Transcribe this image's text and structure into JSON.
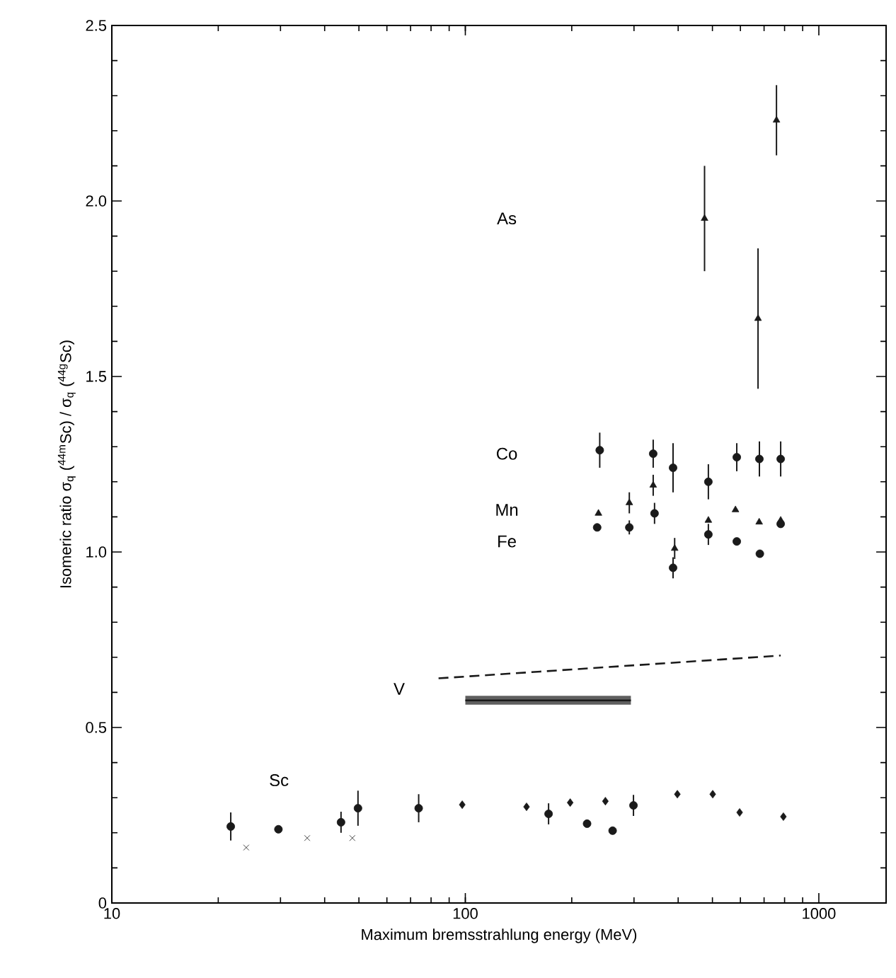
{
  "chart_data": {
    "type": "scatter",
    "xlabel": "Maximum bremsstrahlung energy (MeV)",
    "ylabel": "Isomeric ratio σ$_{q}$ ($^{44m}$Sc) / σ$_{q}$ ($^{44g}$Sc)",
    "log": "x",
    "xlim": [
      10,
      1550
    ],
    "ylim": [
      0,
      2.5
    ],
    "xticks": [
      10,
      100,
      1000
    ],
    "yticks": [
      0,
      0.5,
      {
        "value": 1,
        "label": "1.0"
      },
      1.5,
      {
        "value": 2,
        "label": "2.0"
      },
      2.5
    ],
    "series": [
      {
        "marker": "triangle",
        "color": "#1a1a1a",
        "x": [
          475,
          673,
          759
        ],
        "values": [
          1.95,
          1.665,
          2.23
        ],
        "errors": [
          0.15,
          0.2,
          0.1
        ]
      },
      {
        "marker": "circle",
        "color": "#1a1a1a",
        "x": [
          240,
          340,
          387,
          487,
          586,
          679,
          780
        ],
        "values": [
          1.29,
          1.28,
          1.24,
          1.2,
          1.27,
          1.265,
          1.265
        ],
        "errors": [
          0.05,
          0.04,
          0.07,
          0.05,
          0.04,
          0.05,
          0.05
        ]
      },
      {
        "marker": "triangle",
        "color": "#1a1a1a",
        "x": [
          238,
          291,
          340,
          391,
          487,
          581,
          678,
          780
        ],
        "values": [
          1.11,
          1.14,
          1.19,
          1.01,
          1.09,
          1.12,
          1.085,
          1.09
        ],
        "errors": [
          null,
          0.03,
          0.03,
          0.03,
          null,
          null,
          null,
          null
        ]
      },
      {
        "marker": "circle",
        "color": "#1a1a1a",
        "x": [
          236,
          291,
          343,
          387,
          487,
          586,
          681,
          780
        ],
        "values": [
          1.07,
          1.07,
          1.11,
          0.955,
          1.05,
          1.03,
          0.995,
          1.08
        ],
        "errors": [
          null,
          0.02,
          0.03,
          0.03,
          0.03,
          null,
          null,
          null
        ]
      },
      {
        "marker": "circle",
        "color": "#1a1a1a",
        "x": [
          21.7,
          29.6,
          44.5,
          49.7,
          73.8,
          172,
          221,
          261,
          299
        ],
        "values": [
          0.218,
          0.21,
          0.23,
          0.27,
          0.27,
          0.254,
          0.226,
          0.206,
          0.278
        ],
        "errors": [
          0.04,
          null,
          0.03,
          0.05,
          0.04,
          0.03,
          null,
          null,
          0.03
        ]
      },
      {
        "marker": "cross",
        "color": "#1a1a1a",
        "x": [
          24,
          35.7,
          47.9
        ],
        "values": [
          0.158,
          0.185,
          0.185
        ]
      },
      {
        "marker": "diamond",
        "color": "#1a1a1a",
        "x": [
          98,
          149,
          198,
          249,
          398,
          501,
          597,
          794
        ],
        "values": [
          0.28,
          0.274,
          0.286,
          0.29,
          0.31,
          0.31,
          0.258,
          0.246
        ]
      },
      {
        "type": "line",
        "line_style": "dashed",
        "color": "#1a1a1a",
        "x": [
          84,
          780
        ],
        "values": [
          0.64,
          0.705
        ]
      },
      {
        "type": "line",
        "line_style": "solid",
        "color": "#1a1a1a",
        "x": [
          100,
          294
        ],
        "values": [
          0.577,
          0.577
        ],
        "lower": [
          0.565,
          0.565
        ],
        "upper": [
          0.59,
          0.59
        ]
      }
    ],
    "annotations": [
      "As",
      "Co",
      "Mn",
      "Fe",
      "V",
      "Sc"
    ]
  }
}
